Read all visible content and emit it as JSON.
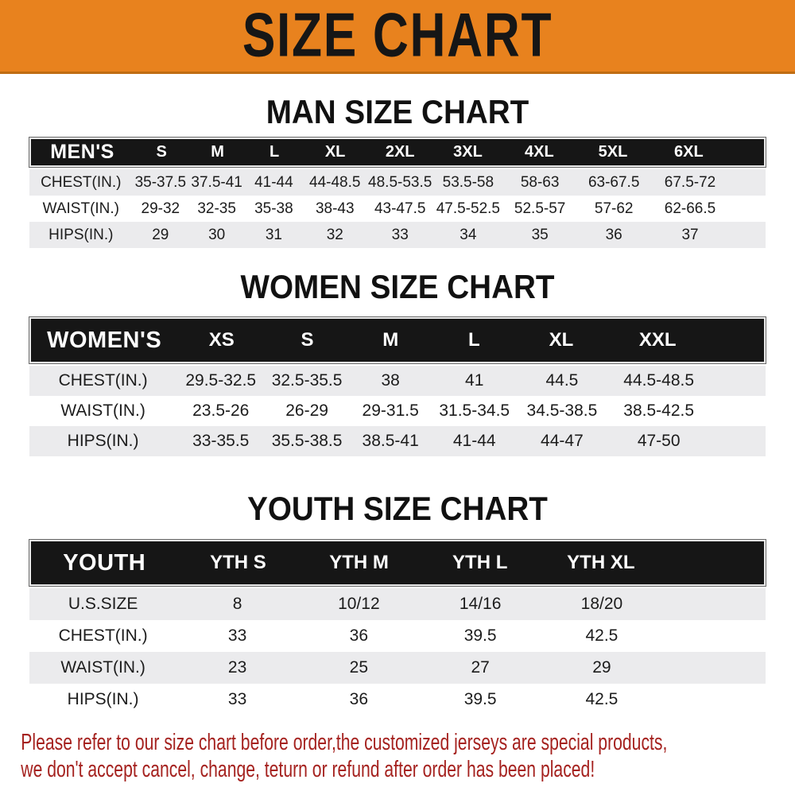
{
  "banner": {
    "title": "SIZE CHART",
    "background": "#e8821e",
    "text_color": "#161616"
  },
  "sections": [
    {
      "id": "man",
      "heading": "MAN SIZE CHART",
      "label": "MEN'S",
      "columns": [
        "S",
        "M",
        "L",
        "XL",
        "2XL",
        "3XL",
        "4XL",
        "5XL",
        "6XL"
      ],
      "rows": [
        {
          "label": "CHEST(IN.)",
          "values": [
            "35-37.5",
            "37.5-41",
            "41-44",
            "44-48.5",
            "48.5-53.5",
            "53.5-58",
            "58-63",
            "63-67.5",
            "67.5-72"
          ]
        },
        {
          "label": "WAIST(IN.)",
          "values": [
            "29-32",
            "32-35",
            "35-38",
            "38-43",
            "43-47.5",
            "47.5-52.5",
            "52.5-57",
            "57-62",
            "62-66.5"
          ]
        },
        {
          "label": "HIPS(IN.)",
          "values": [
            "29",
            "30",
            "31",
            "32",
            "33",
            "34",
            "35",
            "36",
            "37"
          ]
        }
      ]
    },
    {
      "id": "women",
      "heading": "WOMEN SIZE CHART",
      "label": "WOMEN'S",
      "columns": [
        "XS",
        "S",
        "M",
        "L",
        "XL",
        "XXL"
      ],
      "rows": [
        {
          "label": "CHEST(IN.)",
          "values": [
            "29.5-32.5",
            "32.5-35.5",
            "38",
            "41",
            "44.5",
            "44.5-48.5"
          ]
        },
        {
          "label": "WAIST(IN.)",
          "values": [
            "23.5-26",
            "26-29",
            "29-31.5",
            "31.5-34.5",
            "34.5-38.5",
            "38.5-42.5"
          ]
        },
        {
          "label": "HIPS(IN.)",
          "values": [
            "33-35.5",
            "35.5-38.5",
            "38.5-41",
            "41-44",
            "44-47",
            "47-50"
          ]
        }
      ]
    },
    {
      "id": "youth",
      "heading": "YOUTH SIZE CHART",
      "label": "YOUTH",
      "columns": [
        "YTH S",
        "YTH M",
        "YTH L",
        "YTH XL"
      ],
      "rows": [
        {
          "label": "U.S.SIZE",
          "values": [
            "8",
            "10/12",
            "14/16",
            "18/20"
          ]
        },
        {
          "label": "CHEST(IN.)",
          "values": [
            "33",
            "36",
            "39.5",
            "42.5"
          ]
        },
        {
          "label": "WAIST(IN.)",
          "values": [
            "23",
            "25",
            "27",
            "29"
          ]
        },
        {
          "label": "HIPS(IN.)",
          "values": [
            "33",
            "36",
            "39.5",
            "42.5"
          ]
        }
      ]
    }
  ],
  "footer": {
    "line1": "Please refer to our size chart before order,the customized jerseys are special products,",
    "line2": "we don't accept cancel, change, teturn or refund after order has been placed!",
    "text_color": "#a5221f"
  },
  "colors": {
    "banner_orange": "#e8821e",
    "header_black": "#161616",
    "row_gray": "#ebebed",
    "row_white": "#ffffff",
    "footer_red": "#a5221f"
  }
}
